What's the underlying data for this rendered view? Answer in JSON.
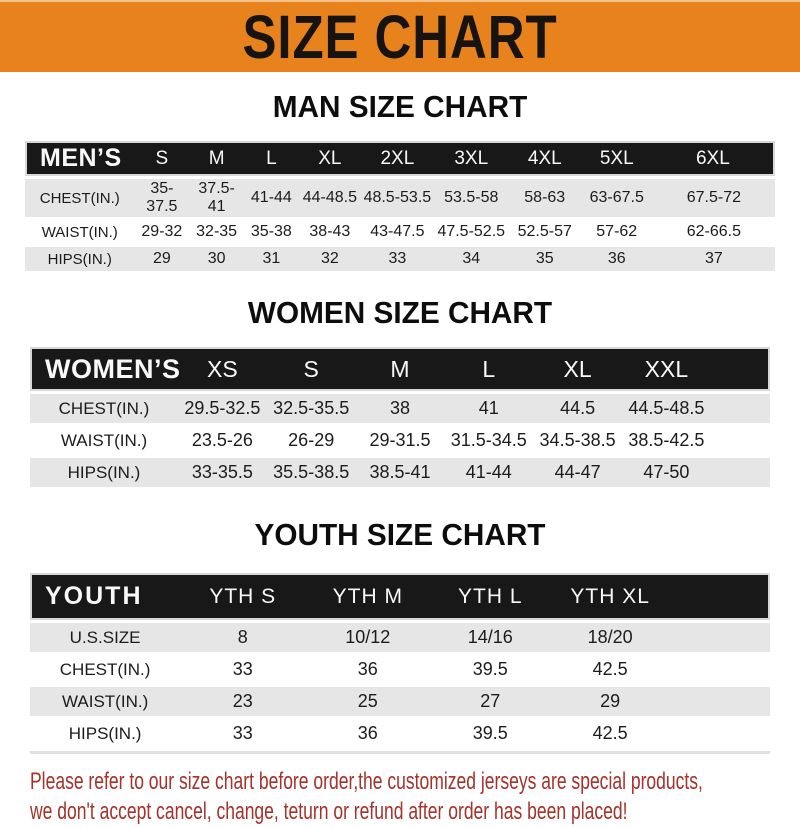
{
  "banner": {
    "title": "SIZE CHART"
  },
  "colors": {
    "banner_bg": "#E8821C",
    "banner_text": "#161310",
    "header_bar_bg": "#181818",
    "header_bar_text": "#F8F8F8",
    "row_alt_bg": "#E6E6E6",
    "row_bg": "#FFFFFF",
    "notice_text": "#A5322B"
  },
  "sections": [
    {
      "id": "men",
      "title": "MAN SIZE CHART",
      "header_label": "MEN’S",
      "columns": [
        "S",
        "M",
        "L",
        "XL",
        "2XL",
        "3XL",
        "4XL",
        "5XL",
        "6XL"
      ],
      "rows": [
        {
          "label": "CHEST(IN.)",
          "values": [
            "35-37.5",
            "37.5-41",
            "41-44",
            "44-48.5",
            "48.5-53.5",
            "53.5-58",
            "58-63",
            "63-67.5",
            "67.5-72"
          ]
        },
        {
          "label": "WAIST(IN.)",
          "values": [
            "29-32",
            "32-35",
            "35-38",
            "38-43",
            "43-47.5",
            "47.5-52.5",
            "52.5-57",
            "57-62",
            "62-66.5"
          ]
        },
        {
          "label": "HIPS(IN.)",
          "values": [
            "29",
            "30",
            "31",
            "32",
            "33",
            "34",
            "35",
            "36",
            "37"
          ]
        }
      ]
    },
    {
      "id": "women",
      "title": "WOMEN SIZE CHART",
      "header_label": "WOMEN’S",
      "columns": [
        "XS",
        "S",
        "M",
        "L",
        "XL",
        "XXL"
      ],
      "rows": [
        {
          "label": "CHEST(IN.)",
          "values": [
            "29.5-32.5",
            "32.5-35.5",
            "38",
            "41",
            "44.5",
            "44.5-48.5"
          ]
        },
        {
          "label": "WAIST(IN.)",
          "values": [
            "23.5-26",
            "26-29",
            "29-31.5",
            "31.5-34.5",
            "34.5-38.5",
            "38.5-42.5"
          ]
        },
        {
          "label": "HIPS(IN.)",
          "values": [
            "33-35.5",
            "35.5-38.5",
            "38.5-41",
            "41-44",
            "44-47",
            "47-50"
          ]
        }
      ]
    },
    {
      "id": "youth",
      "title": "YOUTH SIZE CHART",
      "header_label": "YOUTH",
      "columns": [
        "YTH S",
        "YTH M",
        "YTH L",
        "YTH XL"
      ],
      "rows": [
        {
          "label": "U.S.SIZE",
          "values": [
            "8",
            "10/12",
            "14/16",
            "18/20"
          ]
        },
        {
          "label": "CHEST(IN.)",
          "values": [
            "33",
            "36",
            "39.5",
            "42.5"
          ]
        },
        {
          "label": "WAIST(IN.)",
          "values": [
            "23",
            "25",
            "27",
            "29"
          ]
        },
        {
          "label": "HIPS(IN.)",
          "values": [
            "33",
            "36",
            "39.5",
            "42.5"
          ]
        }
      ]
    }
  ],
  "footer": {
    "lines": [
      "Please refer to our size chart before order,the customized jerseys are special products,",
      "we don't accept cancel, change, teturn or refund after order has been placed!"
    ]
  }
}
